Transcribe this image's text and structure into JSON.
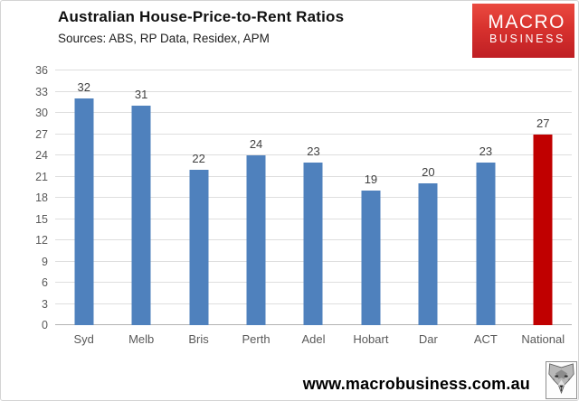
{
  "page": {
    "title": "Australian House-Price-to-Rent Ratios",
    "subtitle": "Sources: ABS, RP Data, Residex, APM",
    "website": "www.macrobusiness.com.au"
  },
  "logo": {
    "line1": "MACRO",
    "line2": "BUSINESS",
    "bg_top": "#ea4a40",
    "bg_bottom": "#bf1f24",
    "text_color": "#ffffff"
  },
  "icons": {
    "wolf": "wolf-mascot-icon"
  },
  "chart_data": {
    "type": "bar",
    "title": "Australian House-Price-to-Rent Ratios",
    "subtitle": "Sources: ABS, RP Data, Residex, APM",
    "categories": [
      "Syd",
      "Melb",
      "Bris",
      "Perth",
      "Adel",
      "Hobart",
      "Dar",
      "ACT",
      "National"
    ],
    "values": [
      32,
      31,
      22,
      24,
      23,
      19,
      20,
      23,
      27
    ],
    "bar_colors": [
      "#4f81bd",
      "#4f81bd",
      "#4f81bd",
      "#4f81bd",
      "#4f81bd",
      "#4f81bd",
      "#4f81bd",
      "#4f81bd",
      "#c00000"
    ],
    "xlabel": "",
    "ylabel": "",
    "ylim": [
      0,
      36
    ],
    "ytick_step": 3,
    "grid": true,
    "legend": false,
    "value_labels": true,
    "gridline_color": "#dedede",
    "axis_line_color": "#b3b3b3",
    "tick_label_color": "#595959",
    "value_label_color": "#404040"
  }
}
